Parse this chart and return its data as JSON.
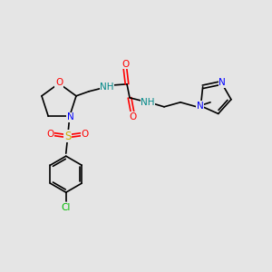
{
  "bg_color": "#e5e5e5",
  "atoms": {
    "colors": {
      "C": "#000000",
      "N": "#0000ff",
      "O": "#ff0000",
      "S": "#ccaa00",
      "Cl": "#00cc00",
      "H": "#008080"
    }
  },
  "font_size": 7.5,
  "line_width": 1.2
}
